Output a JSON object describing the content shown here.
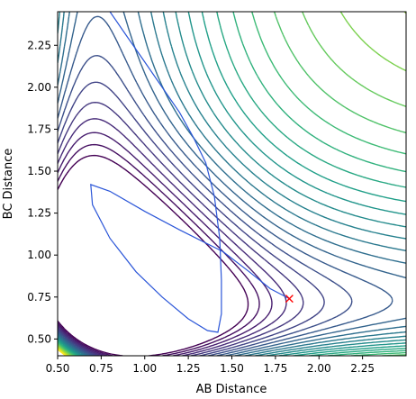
{
  "chart_data": {
    "type": "contour",
    "xlabel": "AB Distance",
    "ylabel": "BC Distance",
    "xlim": [
      0.5,
      2.5
    ],
    "ylim": [
      0.4,
      2.45
    ],
    "xticks": [
      "0.50",
      "0.75",
      "1.00",
      "1.25",
      "1.50",
      "1.75",
      "2.00",
      "2.25"
    ],
    "yticks": [
      "0.50",
      "0.75",
      "1.00",
      "1.25",
      "1.50",
      "1.75",
      "2.00",
      "2.25"
    ],
    "colormap": "viridis",
    "grid": false,
    "trajectory": {
      "color": "#2b56d8",
      "end_color": "#0a1a80",
      "points": [
        [
          0.8,
          2.45
        ],
        [
          0.9,
          2.3
        ],
        [
          1.0,
          2.15
        ],
        [
          1.1,
          2.0
        ],
        [
          1.2,
          1.85
        ],
        [
          1.28,
          1.7
        ],
        [
          1.35,
          1.55
        ],
        [
          1.4,
          1.35
        ],
        [
          1.43,
          1.1
        ],
        [
          1.44,
          0.85
        ],
        [
          1.44,
          0.65
        ],
        [
          1.42,
          0.54
        ],
        [
          1.36,
          0.55
        ],
        [
          1.25,
          0.62
        ],
        [
          1.1,
          0.75
        ],
        [
          0.95,
          0.9
        ],
        [
          0.8,
          1.1
        ],
        [
          0.7,
          1.3
        ],
        [
          0.69,
          1.42
        ],
        [
          0.8,
          1.38
        ],
        [
          1.0,
          1.26
        ],
        [
          1.2,
          1.15
        ],
        [
          1.45,
          1.02
        ],
        [
          1.6,
          0.9
        ],
        [
          1.72,
          0.8
        ],
        [
          1.83,
          0.74
        ]
      ]
    },
    "end_marker": {
      "x": 1.83,
      "y": 0.74,
      "symbol": "x",
      "color": "#ff0000"
    }
  }
}
